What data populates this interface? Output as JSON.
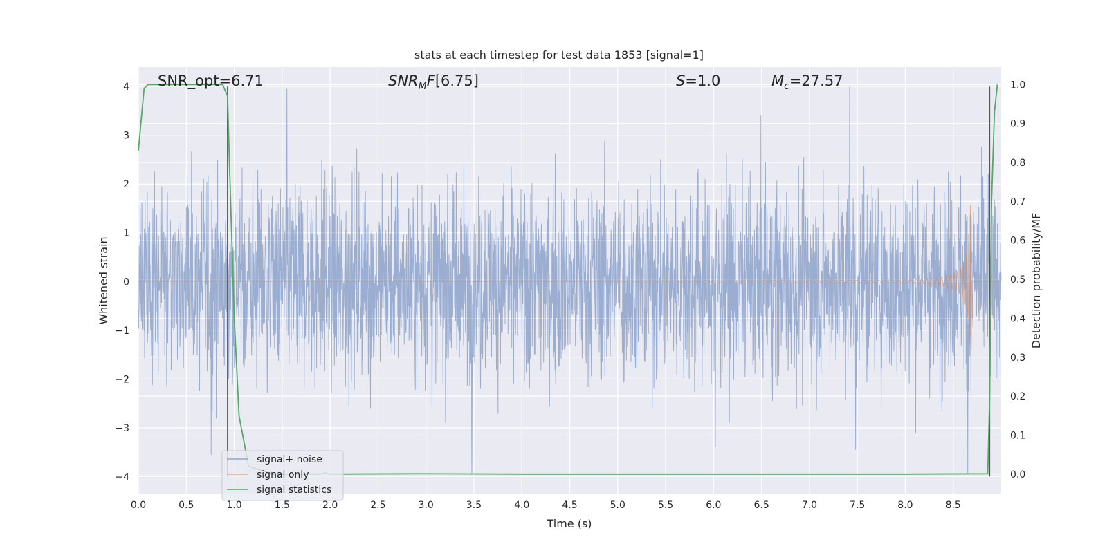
{
  "chart_data": {
    "type": "line",
    "title": "stats at each timestep for test data 1853 [signal=1]",
    "xlabel": "Time (s)",
    "ylabel": "Whitened strain",
    "ylabel_right": "Detection probability/MF",
    "xlim": [
      0.0,
      9.0
    ],
    "ylim": [
      -4.35,
      4.4
    ],
    "ylim_right": [
      -0.05,
      1.045
    ],
    "x_ticks": [
      "0.0",
      "0.5",
      "1.0",
      "1.5",
      "2.0",
      "2.5",
      "3.0",
      "3.5",
      "4.0",
      "4.5",
      "5.0",
      "5.5",
      "6.0",
      "6.5",
      "7.0",
      "7.5",
      "8.0",
      "8.5"
    ],
    "y_ticks": [
      "−4",
      "−3",
      "−2",
      "−1",
      "0",
      "1",
      "2",
      "3",
      "4"
    ],
    "y_ticks_right": [
      "0.0",
      "0.1",
      "0.2",
      "0.3",
      "0.4",
      "0.5",
      "0.6",
      "0.7",
      "0.8",
      "0.9",
      "1.0"
    ],
    "grid": true,
    "legend_position": "lower-left",
    "annotations": {
      "snr_opt": "SNR_opt=6.71",
      "snr_mf": "[6.75]",
      "s_value": "=1.0",
      "mc_value": "=27.57"
    },
    "series": [
      {
        "name": "signal+ noise",
        "color": "#4c72b0",
        "noise_band": [
          -1.6,
          1.6
        ],
        "peaks": [
          {
            "x": 1.55,
            "y": 3.95
          },
          {
            "x": 3.48,
            "y": -3.95
          },
          {
            "x": 7.42,
            "y": 4.0
          },
          {
            "x": 8.65,
            "y": 3.35
          },
          {
            "x": 8.65,
            "y": -3.95
          },
          {
            "x": 0.76,
            "y": -3.55
          },
          {
            "x": 6.02,
            "y": -3.4
          },
          {
            "x": 7.48,
            "y": -3.45
          }
        ]
      },
      {
        "name": "signal only",
        "color": "#dd8452",
        "chirp_start": 5.0,
        "chirp_peak_time": 8.67,
        "chirp_peak": 1.6,
        "chirp_min": -1.4
      },
      {
        "name": "signal statistics",
        "color": "#55a868",
        "axis": "right",
        "x": [
          0.0,
          0.06,
          0.1,
          0.2,
          0.5,
          0.88,
          0.93,
          0.95,
          1.0,
          1.05,
          1.15,
          1.4,
          1.9,
          1.95,
          2.0,
          2.9,
          4.0,
          6.0,
          8.0,
          8.86,
          8.88,
          8.9,
          8.93,
          8.96
        ],
        "values": [
          0.83,
          0.99,
          1.0,
          1.0,
          1.0,
          1.0,
          0.97,
          0.8,
          0.4,
          0.15,
          0.02,
          0.0,
          0.0,
          0.003,
          0.0,
          0.001,
          0.0,
          0.0,
          0.0,
          0.001,
          0.2,
          0.7,
          0.93,
          1.0
        ]
      }
    ],
    "vertical_lines": [
      0.93,
      8.88
    ],
    "vertical_line_color": "#555555"
  }
}
